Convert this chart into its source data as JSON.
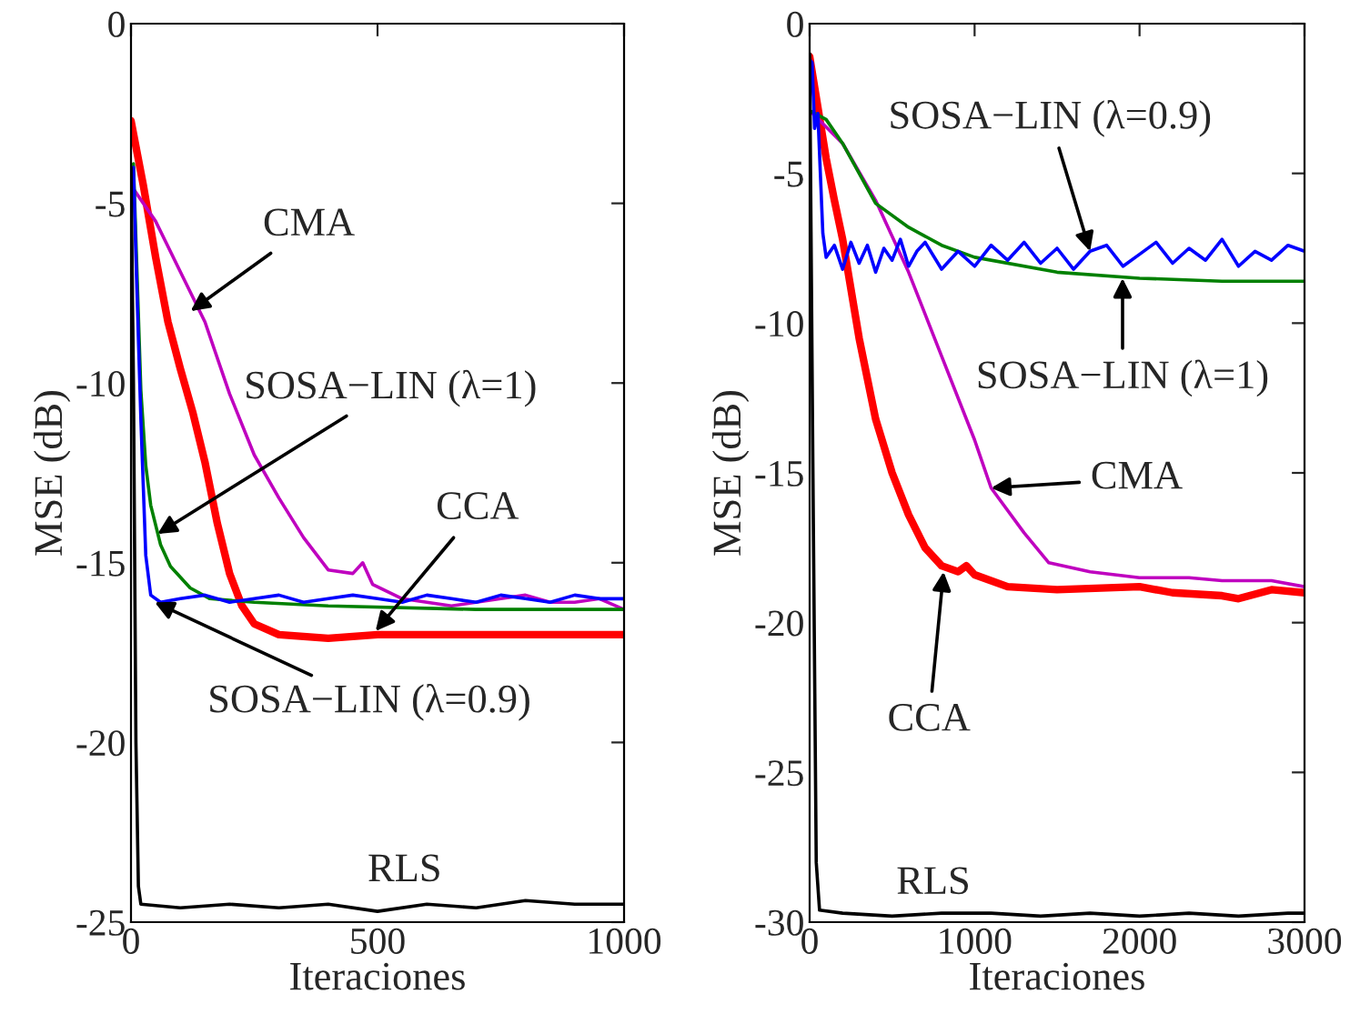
{
  "chart_data": [
    {
      "type": "line",
      "xlabel": "Iteraciones",
      "ylabel": "MSE (dB)",
      "xlim": [
        0,
        1000
      ],
      "ylim": [
        -25,
        0
      ],
      "xticks": [
        0,
        500,
        1000
      ],
      "yticks": [
        -25,
        -20,
        -15,
        -10,
        -5,
        0
      ],
      "grid": false,
      "legend": false,
      "series": [
        {
          "color": "#ff0000",
          "x": [
            0,
            25,
            50,
            75,
            100,
            125,
            150,
            175,
            200,
            225,
            250,
            300,
            400,
            500,
            600,
            700,
            800,
            900,
            1000
          ],
          "values": [
            -2.7,
            -4.5,
            -6.5,
            -8.3,
            -9.6,
            -10.8,
            -12.2,
            -13.9,
            -15.3,
            -16.2,
            -16.7,
            -17.0,
            -17.1,
            -17.0,
            -17.0,
            -17.0,
            -17.0,
            -17.0,
            -17.0
          ]
        },
        {
          "color": "#bf00bf",
          "x": [
            0,
            50,
            100,
            150,
            200,
            250,
            300,
            350,
            400,
            450,
            470,
            490,
            550,
            600,
            650,
            700,
            750,
            800,
            850,
            900,
            950,
            1000
          ],
          "values": [
            -4.5,
            -5.5,
            -6.9,
            -8.3,
            -10.3,
            -12.0,
            -13.2,
            -14.3,
            -15.2,
            -15.3,
            -15.0,
            -15.6,
            -16.0,
            -16.1,
            -16.2,
            -16.1,
            -16.0,
            -15.9,
            -16.1,
            -16.1,
            -16.0,
            -16.3
          ]
        },
        {
          "color": "#008000",
          "x": [
            0,
            5,
            10,
            20,
            30,
            40,
            60,
            80,
            120,
            160,
            250,
            400,
            700,
            1000
          ],
          "values": [
            -5.0,
            -3.9,
            -6.0,
            -10.2,
            -12.3,
            -13.4,
            -14.5,
            -15.1,
            -15.7,
            -16.0,
            -16.1,
            -16.2,
            -16.3,
            -16.3
          ]
        },
        {
          "color": "#0000ff",
          "x": [
            0,
            5,
            10,
            20,
            30,
            40,
            60,
            100,
            150,
            200,
            250,
            300,
            350,
            400,
            450,
            500,
            550,
            600,
            650,
            700,
            750,
            800,
            850,
            900,
            950,
            1000
          ],
          "values": [
            -4.5,
            -4.0,
            -6.5,
            -11.0,
            -14.8,
            -15.9,
            -16.1,
            -16.0,
            -15.9,
            -16.1,
            -16.0,
            -15.9,
            -16.1,
            -16.0,
            -15.9,
            -16.0,
            -16.1,
            -15.9,
            -16.0,
            -16.1,
            -15.9,
            -16.0,
            -16.1,
            -15.9,
            -16.0,
            -16.0
          ]
        },
        {
          "color": "#000000",
          "x": [
            0,
            5,
            10,
            15,
            20,
            100,
            200,
            300,
            400,
            500,
            600,
            700,
            800,
            900,
            1000
          ],
          "values": [
            -4.0,
            -10.0,
            -20.0,
            -24.0,
            -24.5,
            -24.6,
            -24.5,
            -24.6,
            -24.5,
            -24.7,
            -24.5,
            -24.6,
            -24.4,
            -24.5,
            -24.5
          ]
        }
      ],
      "annotations": [
        {
          "text": "CMA",
          "x": 121,
          "y": -8.0
        },
        {
          "text": "SOSA−LIN (λ=1)",
          "x": 54,
          "y": -14.2
        },
        {
          "text": "CCA",
          "x": 496,
          "y": -16.9
        },
        {
          "text": "SOSA−LIN (λ=0.9)",
          "x": 48,
          "y": -16.1
        },
        {
          "text": "RLS",
          "x": 555,
          "y": -24.5
        }
      ]
    },
    {
      "type": "line",
      "xlabel": "Iteraciones",
      "ylabel": "MSE (dB)",
      "xlim": [
        0,
        3000
      ],
      "ylim": [
        -30,
        0
      ],
      "xticks": [
        0,
        1000,
        2000,
        3000
      ],
      "yticks": [
        -30,
        -25,
        -20,
        -15,
        -10,
        -5,
        0
      ],
      "grid": false,
      "legend": false,
      "series": [
        {
          "color": "#ff0000",
          "x": [
            0,
            50,
            100,
            150,
            200,
            300,
            400,
            500,
            600,
            700,
            800,
            900,
            950,
            1000,
            1200,
            1500,
            2000,
            2200,
            2500,
            2600,
            2800,
            3000
          ],
          "values": [
            -1.1,
            -2.8,
            -4.5,
            -5.9,
            -7.2,
            -10.5,
            -13.2,
            -15.0,
            -16.4,
            -17.5,
            -18.1,
            -18.3,
            -18.1,
            -18.4,
            -18.8,
            -18.9,
            -18.8,
            -19.0,
            -19.1,
            -19.2,
            -18.9,
            -19.0
          ]
        },
        {
          "color": "#bf00bf",
          "x": [
            0,
            200,
            400,
            600,
            800,
            1000,
            1100,
            1300,
            1450,
            1700,
            2000,
            2300,
            2500,
            2800,
            3000
          ],
          "values": [
            -2.9,
            -4.0,
            -5.9,
            -8.3,
            -11.1,
            -13.9,
            -15.5,
            -17.0,
            -18.0,
            -18.3,
            -18.5,
            -18.5,
            -18.6,
            -18.6,
            -18.8
          ]
        },
        {
          "color": "#008000",
          "x": [
            0,
            100,
            200,
            400,
            600,
            800,
            1000,
            1500,
            2000,
            2500,
            3000
          ],
          "values": [
            -2.9,
            -3.2,
            -4.0,
            -6.0,
            -6.8,
            -7.4,
            -7.8,
            -8.3,
            -8.5,
            -8.6,
            -8.6
          ]
        },
        {
          "color": "#0000ff",
          "x": [
            0,
            15,
            30,
            50,
            80,
            100,
            150,
            200,
            250,
            300,
            350,
            400,
            450,
            500,
            550,
            600,
            650,
            700,
            800,
            900,
            1000,
            1100,
            1200,
            1300,
            1400,
            1500,
            1600,
            1700,
            1800,
            1900,
            2000,
            2100,
            2200,
            2300,
            2400,
            2500,
            2600,
            2700,
            2800,
            2900,
            3000
          ],
          "values": [
            -1.2,
            -1.3,
            -3.5,
            -3.0,
            -7.0,
            -7.8,
            -7.4,
            -8.2,
            -7.3,
            -8.0,
            -7.4,
            -8.3,
            -7.5,
            -7.9,
            -7.2,
            -8.1,
            -7.6,
            -7.3,
            -8.2,
            -7.6,
            -8.1,
            -7.4,
            -7.9,
            -7.3,
            -8.0,
            -7.5,
            -8.2,
            -7.6,
            -7.4,
            -8.1,
            -7.7,
            -7.3,
            -8.0,
            -7.5,
            -7.9,
            -7.2,
            -8.1,
            -7.6,
            -7.9,
            -7.4,
            -7.6
          ]
        },
        {
          "color": "#000000",
          "x": [
            0,
            20,
            40,
            60,
            200,
            500,
            800,
            1100,
            1400,
            1700,
            2000,
            2300,
            2600,
            2900,
            3000
          ],
          "values": [
            -1.0,
            -15.0,
            -28.0,
            -29.6,
            -29.7,
            -29.8,
            -29.7,
            -29.7,
            -29.8,
            -29.7,
            -29.8,
            -29.7,
            -29.8,
            -29.7,
            -29.7
          ]
        }
      ],
      "annotations": [
        {
          "text": "SOSA−LIN (λ=0.9)",
          "x": 1700,
          "y": -7.6
        },
        {
          "text": "SOSA−LIN (λ=1)",
          "x": 1897,
          "y": -8.5
        },
        {
          "text": "CMA",
          "x": 1100,
          "y": -15.5
        },
        {
          "text": "CCA",
          "x": 812,
          "y": -18.3
        },
        {
          "text": "RLS",
          "x": 750,
          "y": -29.7
        }
      ]
    }
  ]
}
